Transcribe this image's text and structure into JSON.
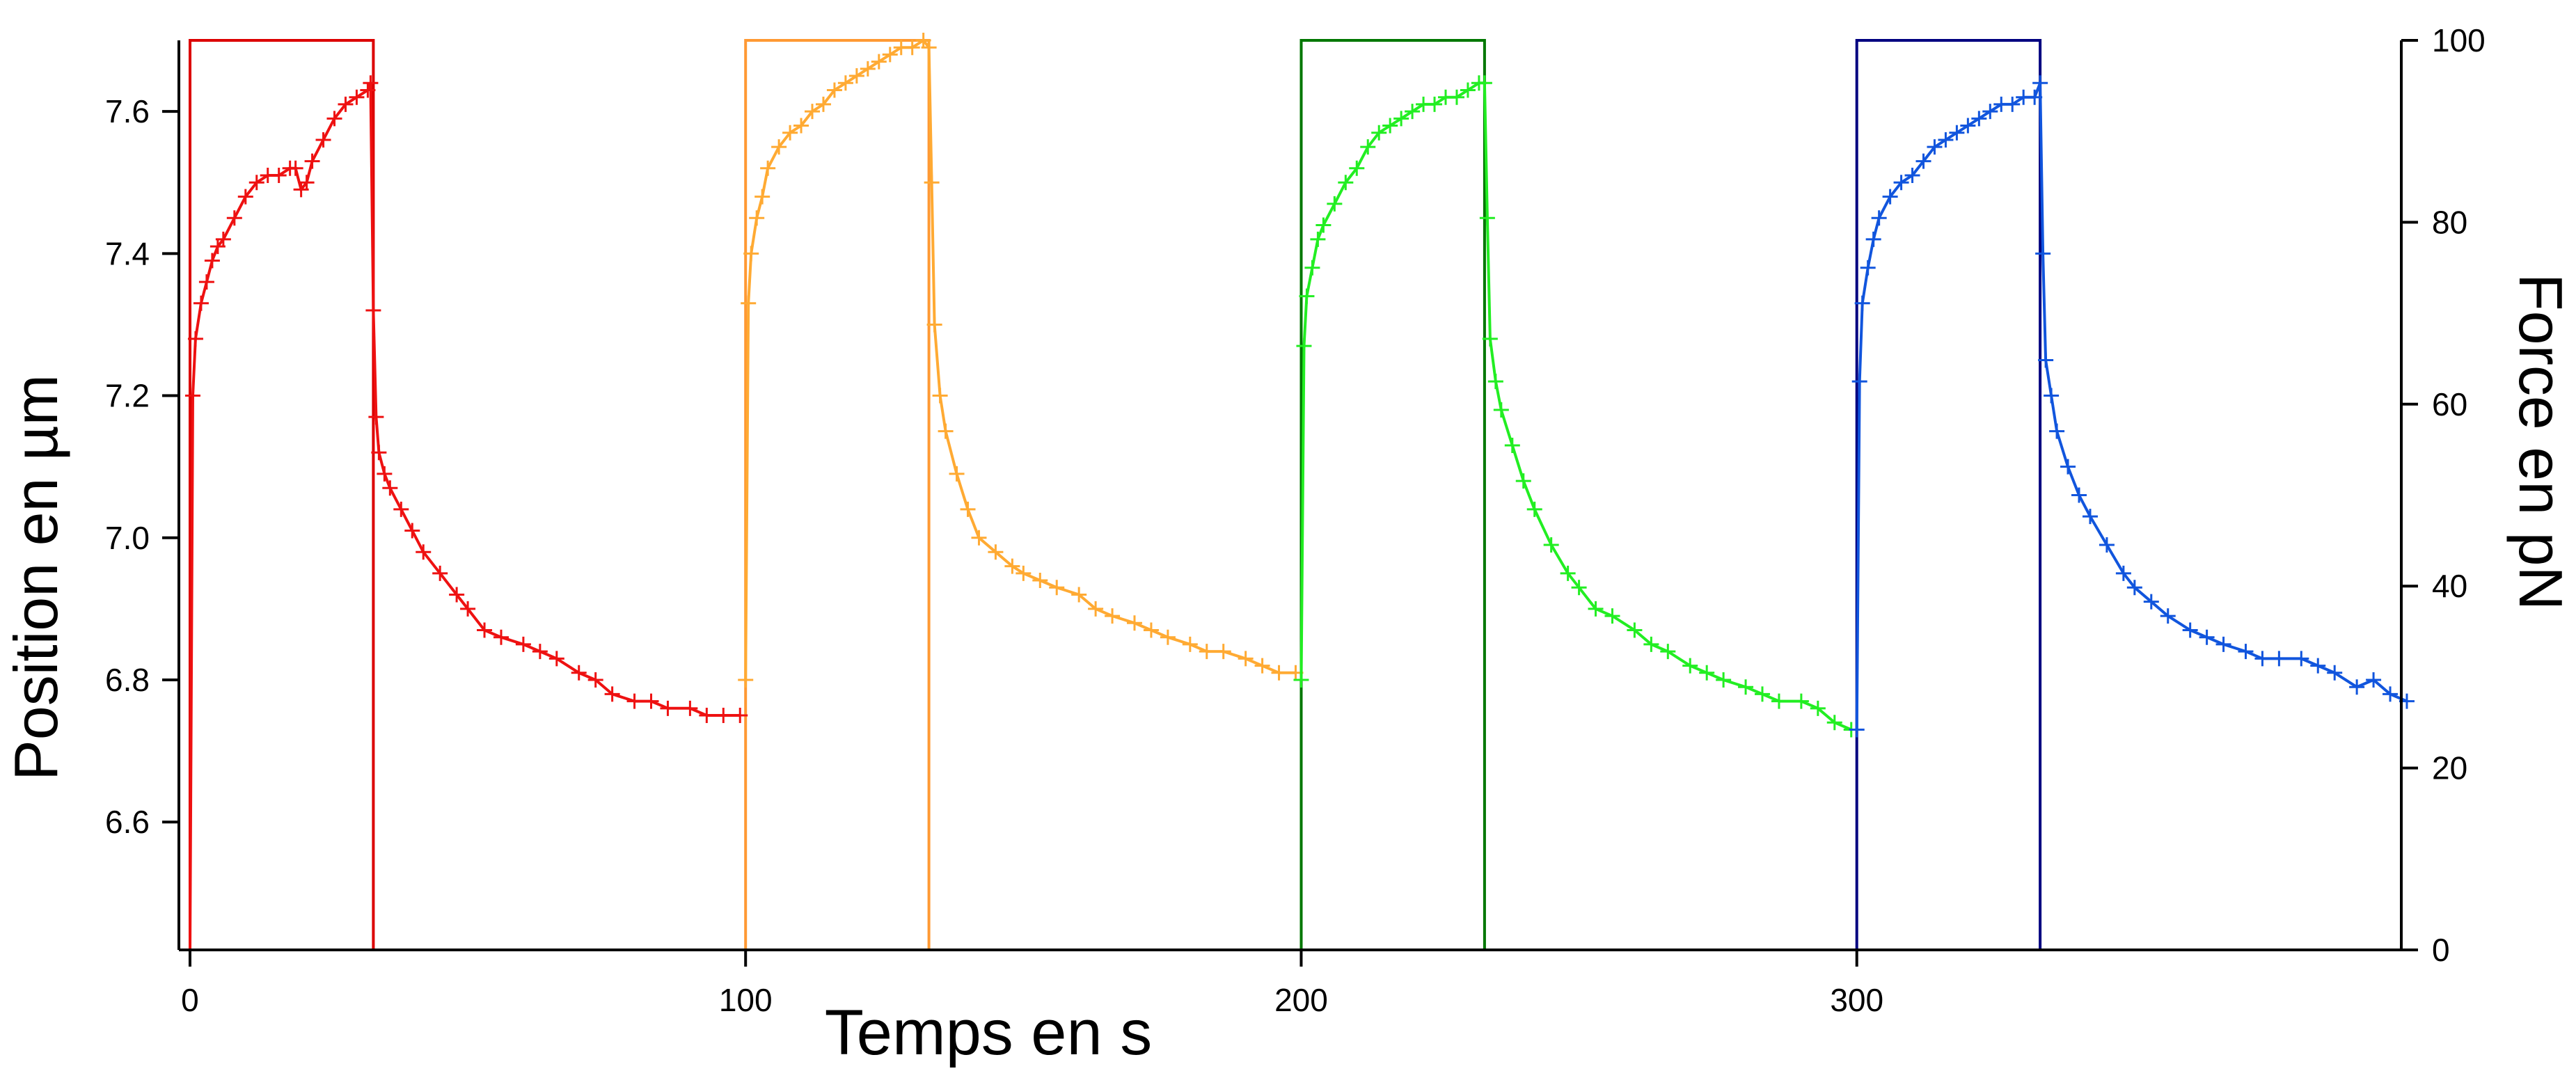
{
  "chart_data": {
    "type": "line",
    "title": "",
    "xlabel": "Temps en s",
    "ylabel_left": "Position en µm",
    "ylabel_right": "Force en pN",
    "xlim": [
      -2,
      398
    ],
    "ylim_left": [
      6.42,
      7.7
    ],
    "ylim_right": [
      0,
      100
    ],
    "x_ticks": [
      0,
      100,
      200,
      300
    ],
    "y_left_ticks": [
      6.6,
      6.8,
      7.0,
      7.2,
      7.4,
      7.6
    ],
    "y_left_tick_labels": [
      "6.6",
      "6.8",
      "7.0",
      "7.2",
      "7.4",
      "7.6"
    ],
    "y_right_ticks": [
      0,
      20,
      40,
      60,
      80,
      100
    ],
    "grid": false,
    "legend": "none",
    "force_series": [
      {
        "color": "#dc0000",
        "x": [
          0,
          0,
          33,
          33,
          99
        ],
        "y": [
          0,
          100,
          100,
          0,
          0
        ]
      },
      {
        "color": "#ff9933",
        "x": [
          100,
          100,
          133,
          133,
          199
        ],
        "y": [
          0,
          100,
          100,
          0,
          0
        ]
      },
      {
        "color": "#007700",
        "x": [
          200,
          200,
          233,
          233,
          299
        ],
        "y": [
          0,
          100,
          100,
          0,
          0
        ]
      },
      {
        "color": "#000080",
        "x": [
          300,
          300,
          333,
          333,
          399
        ],
        "y": [
          0,
          100,
          100,
          0,
          0
        ]
      }
    ],
    "position_series": [
      {
        "color": "#ee1111",
        "x": [
          0,
          0.5,
          1,
          2,
          3,
          4,
          5,
          6,
          8,
          10,
          12,
          14,
          16,
          18,
          19,
          20,
          21,
          22,
          24,
          26,
          28,
          30,
          32,
          32.5,
          33,
          33.5,
          34,
          35,
          36,
          38,
          40,
          42,
          45,
          48,
          50,
          53,
          56,
          60,
          63,
          66,
          70,
          73,
          76,
          80,
          83,
          86,
          90,
          93,
          96,
          99
        ],
        "y": [
          6.42,
          7.2,
          7.28,
          7.33,
          7.36,
          7.39,
          7.41,
          7.42,
          7.45,
          7.48,
          7.5,
          7.51,
          7.51,
          7.52,
          7.52,
          7.49,
          7.5,
          7.53,
          7.56,
          7.59,
          7.61,
          7.62,
          7.63,
          7.64,
          7.32,
          7.17,
          7.12,
          7.09,
          7.07,
          7.04,
          7.01,
          6.98,
          6.95,
          6.92,
          6.9,
          6.87,
          6.86,
          6.85,
          6.84,
          6.83,
          6.81,
          6.8,
          6.78,
          6.77,
          6.77,
          6.76,
          6.76,
          6.75,
          6.75,
          6.75
        ]
      },
      {
        "color": "#ffaa33",
        "x": [
          100,
          100.5,
          101,
          102,
          103,
          104,
          106,
          108,
          110,
          112,
          114,
          116,
          118,
          120,
          122,
          124,
          126,
          128,
          130,
          132,
          133,
          133.5,
          134,
          135,
          136,
          138,
          140,
          142,
          145,
          148,
          150,
          153,
          156,
          160,
          163,
          166,
          170,
          173,
          176,
          180,
          183,
          186,
          190,
          193,
          196,
          199
        ],
        "y": [
          6.8,
          7.33,
          7.4,
          7.45,
          7.48,
          7.52,
          7.55,
          7.57,
          7.58,
          7.6,
          7.61,
          7.63,
          7.64,
          7.65,
          7.66,
          7.67,
          7.68,
          7.69,
          7.69,
          7.7,
          7.69,
          7.5,
          7.3,
          7.2,
          7.15,
          7.09,
          7.04,
          7.0,
          6.98,
          6.96,
          6.95,
          6.94,
          6.93,
          6.92,
          6.9,
          6.89,
          6.88,
          6.87,
          6.86,
          6.85,
          6.84,
          6.84,
          6.83,
          6.82,
          6.81,
          6.81
        ]
      },
      {
        "color": "#22ee22",
        "x": [
          200,
          200.5,
          201,
          202,
          203,
          204,
          206,
          208,
          210,
          212,
          214,
          216,
          218,
          220,
          222,
          224,
          226,
          228,
          230,
          232,
          233,
          233.5,
          234,
          235,
          236,
          238,
          240,
          242,
          245,
          248,
          250,
          253,
          256,
          260,
          263,
          266,
          270,
          273,
          276,
          280,
          283,
          286,
          290,
          293,
          296,
          299
        ],
        "y": [
          6.8,
          7.27,
          7.34,
          7.38,
          7.42,
          7.44,
          7.47,
          7.5,
          7.52,
          7.55,
          7.57,
          7.58,
          7.59,
          7.6,
          7.61,
          7.61,
          7.62,
          7.62,
          7.63,
          7.64,
          7.64,
          7.45,
          7.28,
          7.22,
          7.18,
          7.13,
          7.08,
          7.04,
          6.99,
          6.95,
          6.93,
          6.9,
          6.89,
          6.87,
          6.85,
          6.84,
          6.82,
          6.81,
          6.8,
          6.79,
          6.78,
          6.77,
          6.77,
          6.76,
          6.74,
          6.73
        ]
      },
      {
        "color": "#1155dd",
        "x": [
          300,
          300.5,
          301,
          302,
          303,
          304,
          306,
          308,
          310,
          312,
          314,
          316,
          318,
          320,
          322,
          324,
          326,
          328,
          330,
          332,
          333,
          333.5,
          334,
          335,
          336,
          338,
          340,
          342,
          345,
          348,
          350,
          353,
          356,
          360,
          363,
          366,
          370,
          373,
          376,
          380,
          383,
          386,
          390,
          393,
          396,
          399
        ],
        "y": [
          6.73,
          7.22,
          7.33,
          7.38,
          7.42,
          7.45,
          7.48,
          7.5,
          7.51,
          7.53,
          7.55,
          7.56,
          7.57,
          7.58,
          7.59,
          7.6,
          7.61,
          7.61,
          7.62,
          7.62,
          7.64,
          7.4,
          7.25,
          7.2,
          7.15,
          7.1,
          7.06,
          7.03,
          6.99,
          6.95,
          6.93,
          6.91,
          6.89,
          6.87,
          6.86,
          6.85,
          6.84,
          6.83,
          6.83,
          6.83,
          6.82,
          6.81,
          6.79,
          6.8,
          6.78,
          6.77
        ]
      }
    ]
  }
}
